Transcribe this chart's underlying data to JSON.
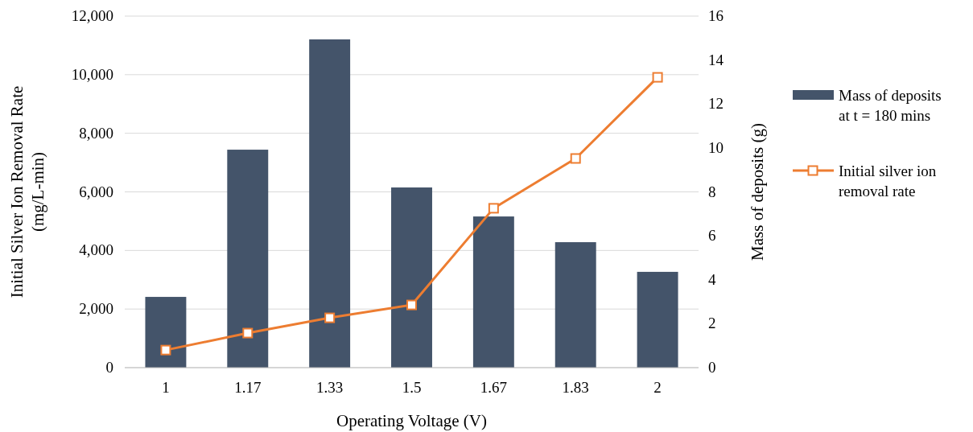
{
  "chart_data": {
    "type": "bar",
    "xlabel": "Operating Voltage (V)",
    "ylabel": "Initial Silver Ion Removal Rate (mg/L-min)",
    "y2label": "Mass of deposits (g)",
    "categories": [
      "1",
      "1.17",
      "1.33",
      "1.5",
      "1.67",
      "1.83",
      "2"
    ],
    "series": [
      {
        "name": "Mass of deposits at t = 180 mins",
        "axis": "y2",
        "color": "#44546a",
        "values": [
          3.22,
          9.92,
          14.94,
          8.2,
          6.88,
          5.71,
          4.36
        ]
      },
      {
        "name": "Initial silver ion removal rate",
        "type": "line",
        "axis": "y",
        "color": "#ed7d31",
        "marker": "square",
        "values": [
          600,
          1180,
          1700,
          2140,
          5440,
          7140,
          9910
        ]
      }
    ],
    "ylim": [
      0,
      12000
    ],
    "yticks": [
      {
        "value": 0,
        "label": "0"
      },
      {
        "value": 2000,
        "label": "2,000"
      },
      {
        "value": 4000,
        "label": "4,000"
      },
      {
        "value": 6000,
        "label": "6,000"
      },
      {
        "value": 8000,
        "label": "8,000"
      },
      {
        "value": 10000,
        "label": "10,000"
      },
      {
        "value": 12000,
        "label": "12,000"
      }
    ],
    "y2lim": [
      0,
      16
    ],
    "y2ticks": [
      0,
      2,
      4,
      6,
      8,
      10,
      12,
      14,
      16
    ],
    "grid": "y",
    "legend": "right"
  }
}
